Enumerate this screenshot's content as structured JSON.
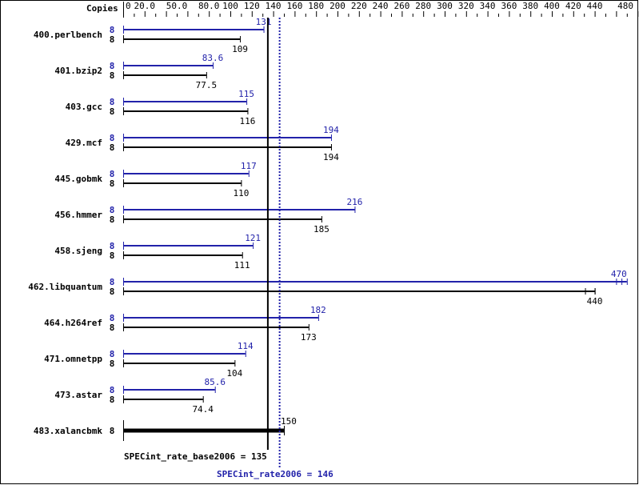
{
  "chart_data": {
    "type": "bar",
    "orientation": "horizontal",
    "axis_label": "Copies",
    "xlim": [
      0,
      480
    ],
    "tick_labels": [
      "0",
      "20.0",
      "50.0",
      "80.0",
      "100",
      "120",
      "140",
      "160",
      "180",
      "200",
      "220",
      "240",
      "260",
      "280",
      "300",
      "320",
      "340",
      "360",
      "380",
      "400",
      "420",
      "440",
      "480"
    ],
    "tick_values": [
      0,
      20,
      50,
      80,
      100,
      120,
      140,
      160,
      180,
      200,
      220,
      240,
      260,
      280,
      300,
      320,
      340,
      360,
      380,
      400,
      420,
      440,
      480
    ],
    "colors": {
      "peak": "#2222aa",
      "base": "#000000"
    },
    "benchmarks": [
      {
        "name": "400.perlbench",
        "peak_copies": "8",
        "peak": 131,
        "peak_label": "131",
        "base_copies": "8",
        "base": 109,
        "base_label": "109"
      },
      {
        "name": "401.bzip2",
        "peak_copies": "8",
        "peak": 83.6,
        "peak_label": "83.6",
        "base_copies": "8",
        "base": 77.5,
        "base_label": "77.5"
      },
      {
        "name": "403.gcc",
        "peak_copies": "8",
        "peak": 115,
        "peak_label": "115",
        "base_copies": "8",
        "base": 116,
        "base_label": "116"
      },
      {
        "name": "429.mcf",
        "peak_copies": "8",
        "peak": 194,
        "peak_label": "194",
        "base_copies": "8",
        "base": 194,
        "base_label": "194"
      },
      {
        "name": "445.gobmk",
        "peak_copies": "8",
        "peak": 117,
        "peak_label": "117",
        "base_copies": "8",
        "base": 110,
        "base_label": "110"
      },
      {
        "name": "456.hmmer",
        "peak_copies": "8",
        "peak": 216,
        "peak_label": "216",
        "base_copies": "8",
        "base": 185,
        "base_label": "185"
      },
      {
        "name": "458.sjeng",
        "peak_copies": "8",
        "peak": 121,
        "peak_label": "121",
        "base_copies": "8",
        "base": 111,
        "base_label": "111"
      },
      {
        "name": "462.libquantum",
        "peak_copies": "8",
        "peak": 470,
        "peak_label": "470",
        "peak_ticks": [
          460,
          465
        ],
        "base_copies": "8",
        "base": 440,
        "base_label": "440",
        "base_ticks": [
          431,
          440
        ]
      },
      {
        "name": "464.h264ref",
        "peak_copies": "8",
        "peak": 182,
        "peak_label": "182",
        "base_copies": "8",
        "base": 173,
        "base_label": "173"
      },
      {
        "name": "471.omnetpp",
        "peak_copies": "8",
        "peak": 114,
        "peak_label": "114",
        "base_copies": "8",
        "base": 104,
        "base_label": "104"
      },
      {
        "name": "473.astar",
        "peak_copies": "8",
        "peak": 85.6,
        "peak_label": "85.6",
        "base_copies": "8",
        "base": 74.4,
        "base_label": "74.4"
      },
      {
        "name": "483.xalancbmk",
        "base_copies": "8",
        "base": 150,
        "base_label": "150",
        "base_only": true
      }
    ],
    "base_mean": {
      "value": 135,
      "label": "SPECint_rate_base2006 = 135"
    },
    "peak_mean": {
      "value": 146,
      "label": "SPECint_rate2006 = 146"
    }
  }
}
